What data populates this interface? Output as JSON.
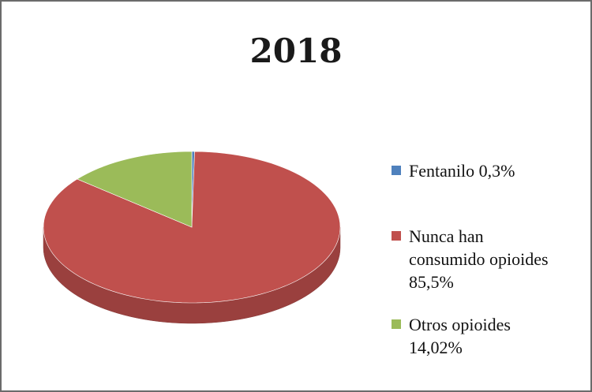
{
  "chart_data": {
    "type": "pie",
    "title": "2018",
    "categories": [
      "Fentanilo 0,3%",
      "Nunca han consumido opioides 85,5%",
      "Otros opioides 14,02%"
    ],
    "values": [
      0.3,
      85.5,
      14.02
    ],
    "colors": [
      "#4f81bd",
      "#c0504d",
      "#9bbb59"
    ],
    "legend": "right"
  }
}
